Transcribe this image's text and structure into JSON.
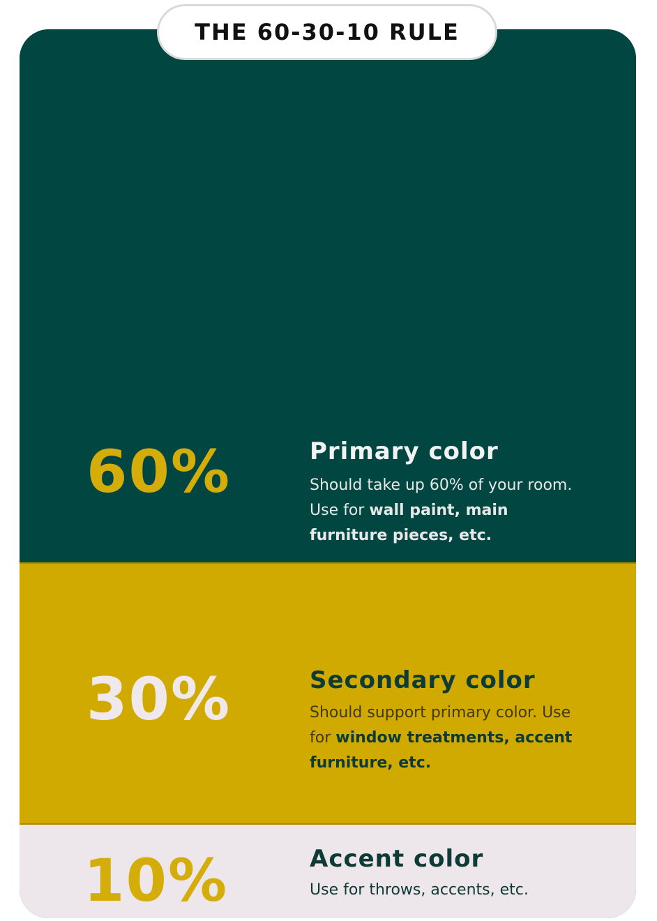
{
  "header": {
    "title": "THE 60-30-10 RULE"
  },
  "colors": {
    "primary": "#024641",
    "secondary": "#d0aa00",
    "accent": "#ede6ea",
    "primary_text_on_dark": "#f2f2f2",
    "percent_gold": "#d4ad0a"
  },
  "sections": [
    {
      "percent": "60%",
      "title": "Primary color",
      "desc_plain": "Should take up 60% of your room. Use for ",
      "desc_bold": "wall paint, main furniture pieces, etc."
    },
    {
      "percent": "30%",
      "title": "Secondary color",
      "desc_plain": "Should support primary color. Use for ",
      "desc_bold": "window treatments, accent furniture, etc."
    },
    {
      "percent": "10%",
      "title": "Accent color",
      "desc_plain": "Use for throws, accents, etc.",
      "desc_bold": ""
    }
  ]
}
